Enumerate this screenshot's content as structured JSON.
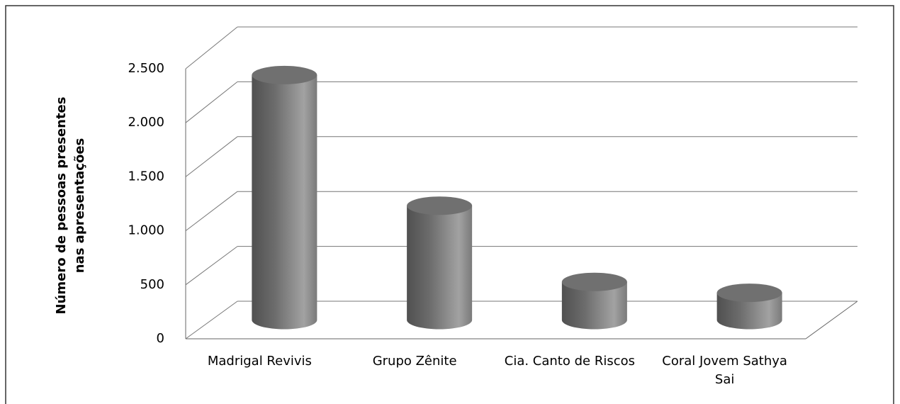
{
  "chart_data": {
    "type": "bar3d",
    "ylabel": "Número de pessoas presentes nas apresentações",
    "categories": [
      "Madrigal Revivis",
      "Grupo Zênite",
      "Cia. Canto de Riscos",
      "Coral Jovem Sathya Sai"
    ],
    "values": [
      2250,
      1050,
      350,
      250
    ],
    "color": "#707070",
    "ylim": [
      0,
      2500
    ],
    "yticks": [
      0,
      500,
      {
        "value": 1000,
        "label": "1.000"
      },
      {
        "value": 1500,
        "label": "1.500"
      },
      {
        "value": 2000,
        "label": "2.000"
      },
      {
        "value": 2500,
        "label": "2.500"
      }
    ],
    "grid": true
  }
}
